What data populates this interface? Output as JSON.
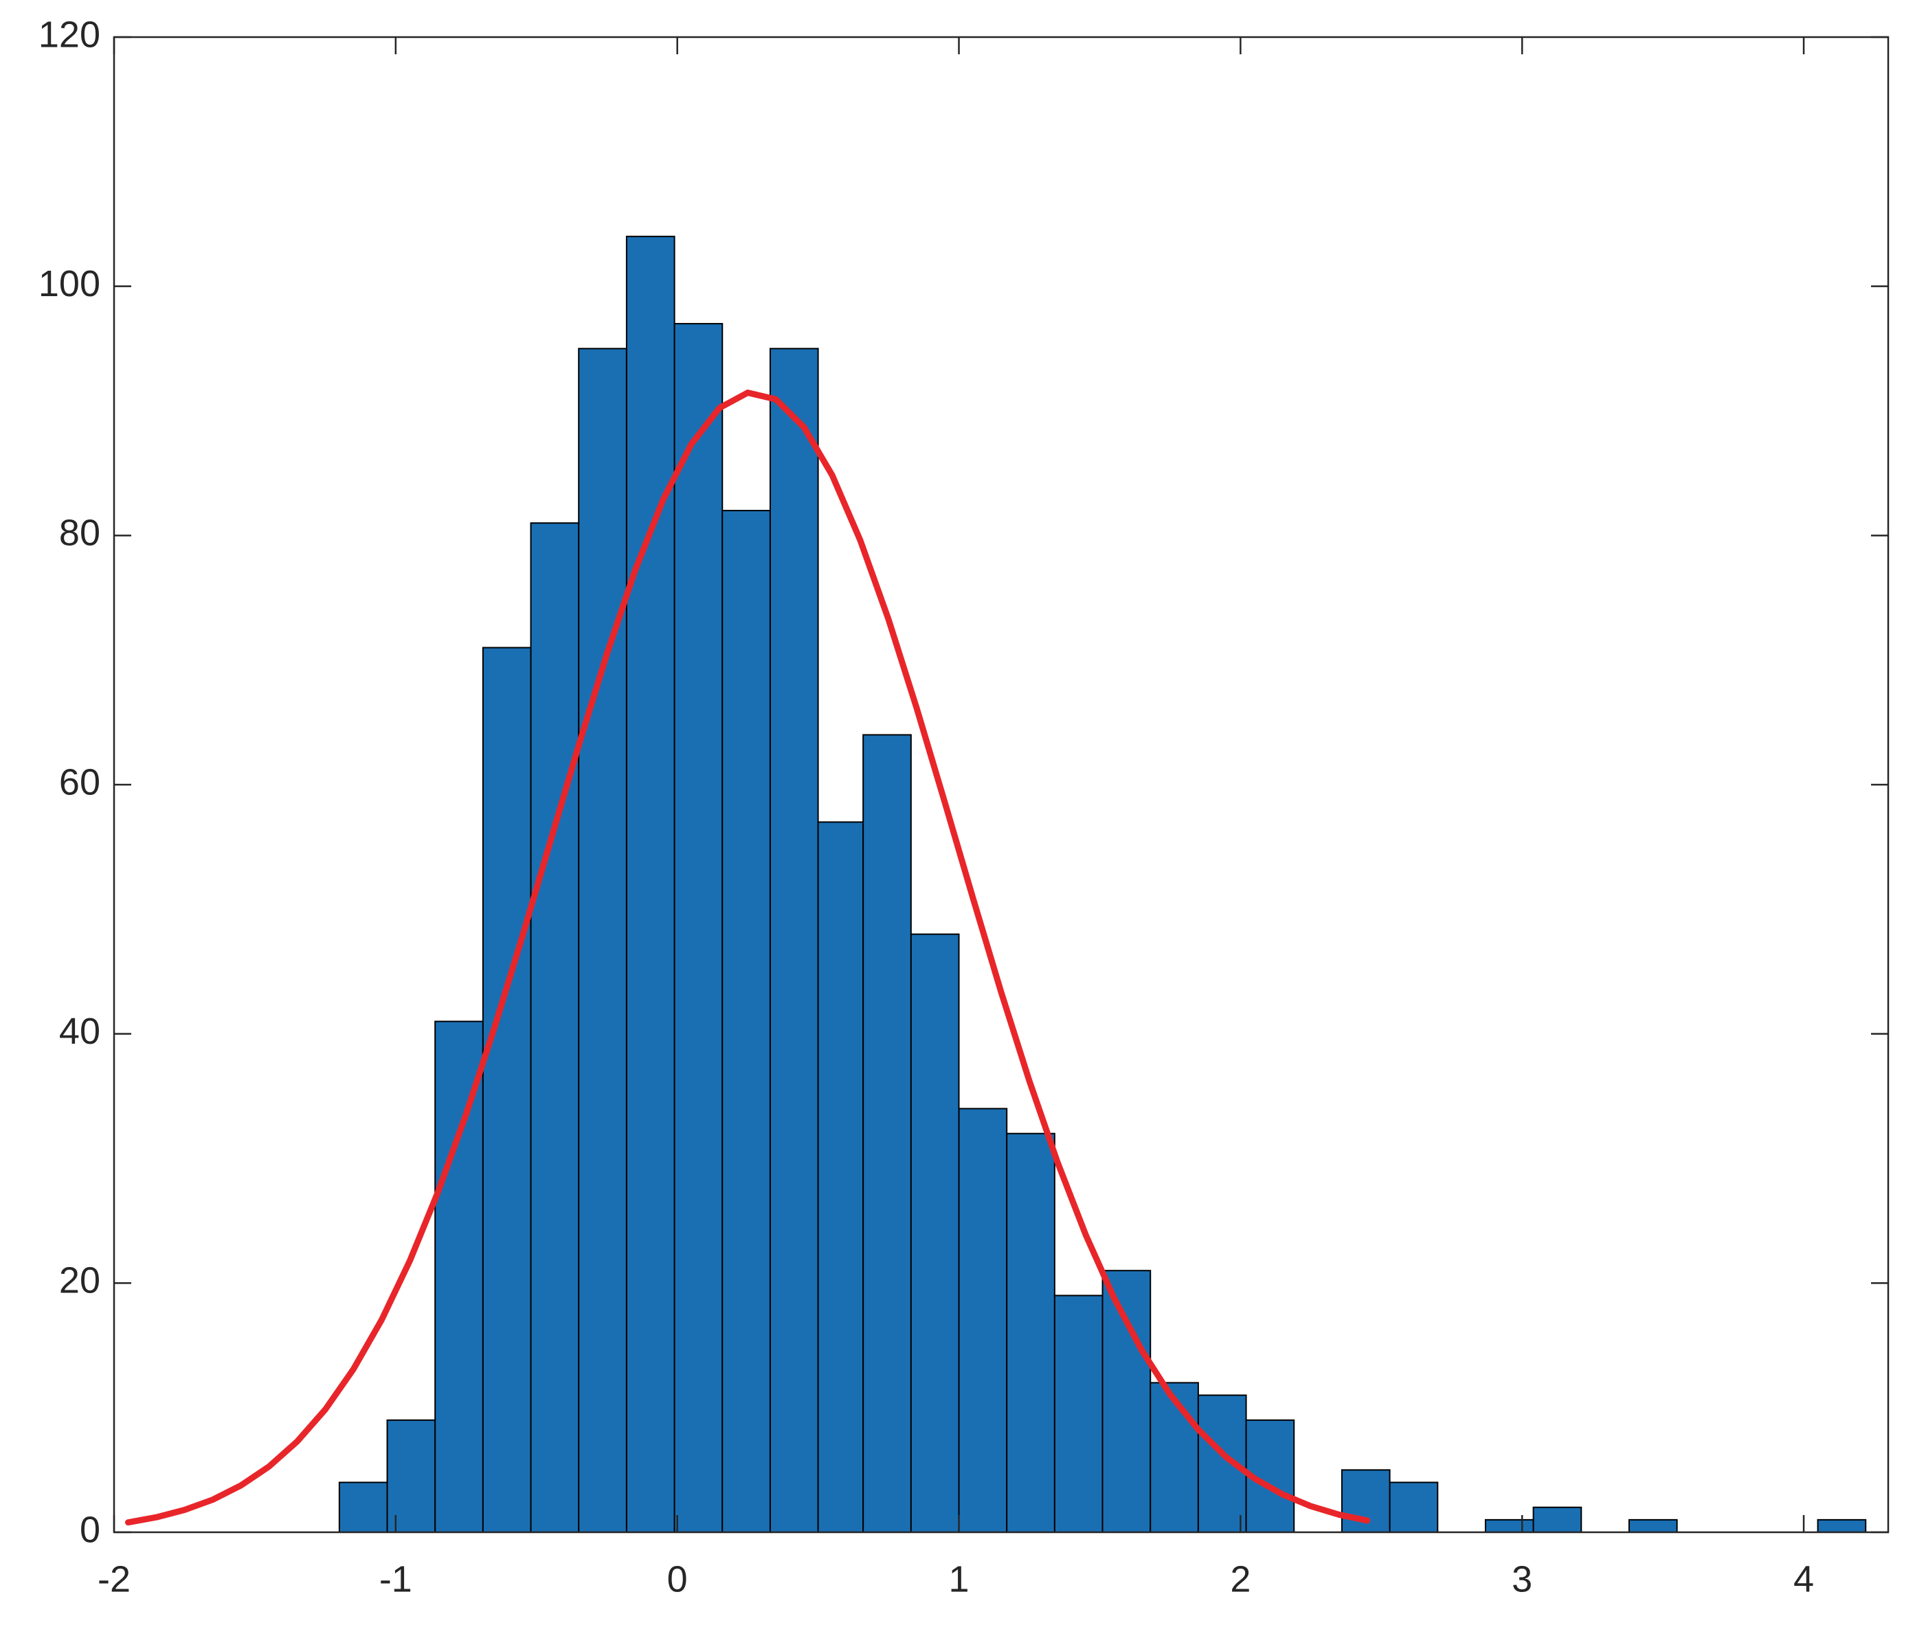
{
  "chart_data": {
    "type": "histogram",
    "bins": [
      -1.2,
      -1.03,
      -0.86,
      -0.69,
      -0.52,
      -0.35,
      -0.18,
      -0.01,
      0.16,
      0.33,
      0.5,
      0.66,
      0.83,
      1,
      1.17,
      1.34,
      1.51,
      1.68,
      1.85,
      2.02,
      2.19,
      2.36,
      2.53,
      2.7,
      2.87,
      3.04,
      3.21,
      3.38,
      3.55,
      3.72,
      3.89,
      4.05,
      4.22
    ],
    "values": [
      4,
      9,
      41,
      71,
      81,
      95,
      104,
      97,
      82,
      95,
      57,
      64,
      48,
      34,
      32,
      19,
      21,
      12,
      11,
      9,
      0,
      5,
      4,
      0,
      1,
      2,
      0,
      1,
      0,
      0,
      0,
      1
    ],
    "color": "#1a6fb3",
    "edge_color": "#000000",
    "fit": {
      "type": "line",
      "color": "#e8262a",
      "x": [
        -1.95,
        -1.85,
        -1.75,
        -1.65,
        -1.55,
        -1.45,
        -1.35,
        -1.25,
        -1.15,
        -1.05,
        -0.95,
        -0.85,
        -0.75,
        -0.65,
        -0.55,
        -0.45,
        -0.35,
        -0.25,
        -0.15,
        -0.05,
        0.05,
        0.15,
        0.25,
        0.35,
        0.45,
        0.55,
        0.65,
        0.75,
        0.85,
        0.95,
        1.05,
        1.15,
        1.25,
        1.35,
        1.45,
        1.55,
        1.65,
        1.75,
        1.85,
        1.95,
        2.05,
        2.15,
        2.25,
        2.35,
        2.45
      ],
      "values": [
        0.79,
        1.2,
        1.79,
        2.61,
        3.75,
        5.27,
        7.28,
        9.85,
        13.09,
        17.04,
        21.77,
        27.29,
        33.54,
        40.45,
        47.83,
        55.5,
        63.15,
        70.49,
        77.19,
        82.89,
        87.33,
        90.24,
        91.46,
        90.93,
        88.68,
        84.84,
        79.6,
        73.27,
        66.15,
        58.58,
        50.89,
        43.35,
        36.24,
        29.71,
        23.89,
        18.84,
        14.58,
        11.06,
        8.24,
        6.01,
        4.31,
        3.03,
        2.09,
        1.41,
        0.94
      ]
    },
    "xlim": [
      -2,
      4.3
    ],
    "ylim": [
      0,
      120
    ],
    "xticks": [
      -2,
      -1,
      0,
      1,
      2,
      3,
      4
    ],
    "yticks": [
      0,
      20,
      40,
      60,
      80,
      100,
      120
    ],
    "grid": false
  }
}
